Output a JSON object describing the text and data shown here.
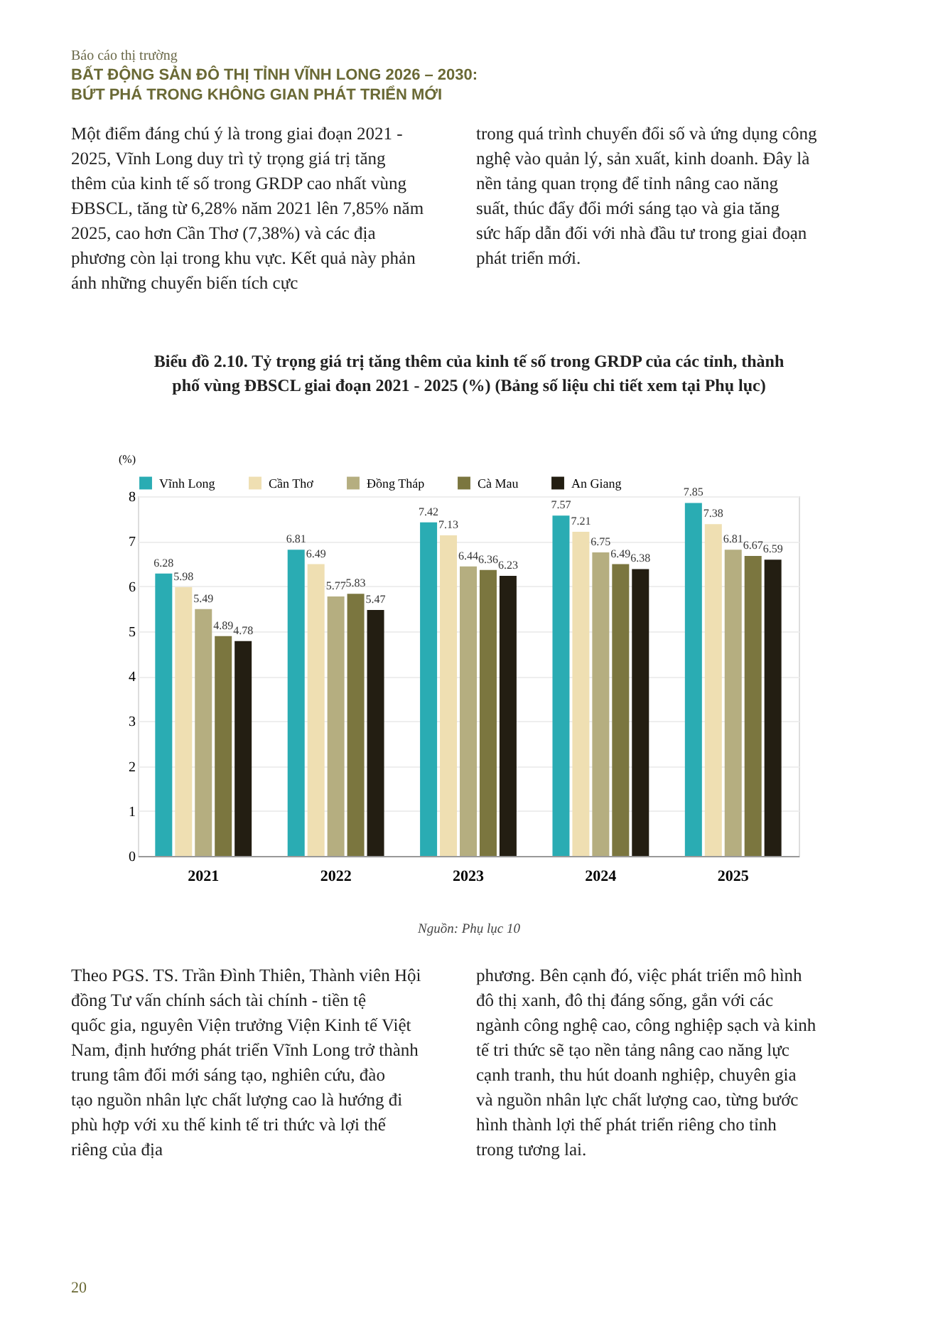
{
  "chart_data": {
    "type": "bar",
    "title": "Biểu đồ 2.10. Tỷ trọng giá trị tăng thêm của kinh tế số trong GRDP của các tỉnh, thành phố vùng ĐBSCL giai đoạn 2021 - 2025 (%) (Bảng số liệu chi tiết xem tại Phụ lục)",
    "ylabel": "(%)",
    "categories": [
      "2021",
      "2022",
      "2023",
      "2024",
      "2025"
    ],
    "series": [
      {
        "name": "Vĩnh Long",
        "color": "#2aacb3",
        "values": [
          6.28,
          6.81,
          7.42,
          7.57,
          7.85
        ]
      },
      {
        "name": "Cần Thơ",
        "color": "#efdfb2",
        "values": [
          5.98,
          6.49,
          7.13,
          7.21,
          7.38
        ]
      },
      {
        "name": "Đồng Tháp",
        "color": "#b5ae80",
        "values": [
          5.49,
          5.77,
          6.44,
          6.75,
          6.81
        ]
      },
      {
        "name": "Cà Mau",
        "color": "#7b763f",
        "values": [
          4.89,
          5.83,
          6.36,
          6.49,
          6.67
        ]
      },
      {
        "name": "An Giang",
        "color": "#231e12",
        "values": [
          4.78,
          5.47,
          6.23,
          6.38,
          6.59
        ]
      }
    ],
    "ylim": [
      0,
      8
    ],
    "yticks": [
      0,
      1,
      2,
      3,
      4,
      5,
      6,
      7,
      8
    ],
    "grid": "y",
    "legend": "top",
    "data_labels": true,
    "annotations": [
      "Báo cáo thị trường",
      "BẤT ĐỘNG SẢN ĐÔ THỊ TỈNH VĨNH LONG 2026 – 2030:",
      "BỨT PHÁ TRONG KHÔNG GIAN PHÁT TRIỂN MỚI",
      "Một điểm đáng chú ý là trong giai đoạn 2021 - 2025, Vĩnh Long duy trì tỷ trọng giá trị tăng thêm của kinh tế số trong GRDP cao nhất vùng ĐBSCL, tăng từ 6,28% năm 2021 lên 7,85% năm 2025, cao hơn Cần Thơ (7,38%) và các địa phương còn lại trong khu vực. Kết quả này phản ánh những chuyển biến tích cực",
      "trong quá trình chuyển đổi số và ứng dụng công nghệ vào quản lý, sản xuất, kinh doanh. Đây là nền tảng quan trọng để tỉnh nâng cao năng suất, thúc đẩy đổi mới sáng tạo và gia tăng sức hấp dẫn đối với nhà đầu tư trong giai đoạn phát triển mới.",
      "Nguồn: Phụ lục 10",
      "Theo PGS. TS. Trần Đình Thiên, Thành viên Hội đồng Tư vấn chính sách tài chính - tiền tệ quốc gia, nguyên Viện trưởng Viện Kinh tế Việt Nam, định hướng phát triển Vĩnh Long trở thành trung tâm đổi mới sáng tạo, nghiên cứu, đào tạo nguồn nhân lực chất lượng cao là hướng đi phù hợp với xu thế kinh tế tri thức và lợi thế riêng của địa",
      "phương. Bên cạnh đó, việc phát triển mô hình đô thị xanh, đô thị đáng sống, gắn với các ngành công nghệ cao, công nghiệp sạch và kinh tế tri thức sẽ tạo nền tảng nâng cao năng lực cạnh tranh, thu hút doanh nghiệp, chuyên gia và nguồn nhân lực chất lượng cao, từng bước hình thành lợi thế phát triển riêng cho tỉnh trong tương lai.",
      "20"
    ]
  }
}
